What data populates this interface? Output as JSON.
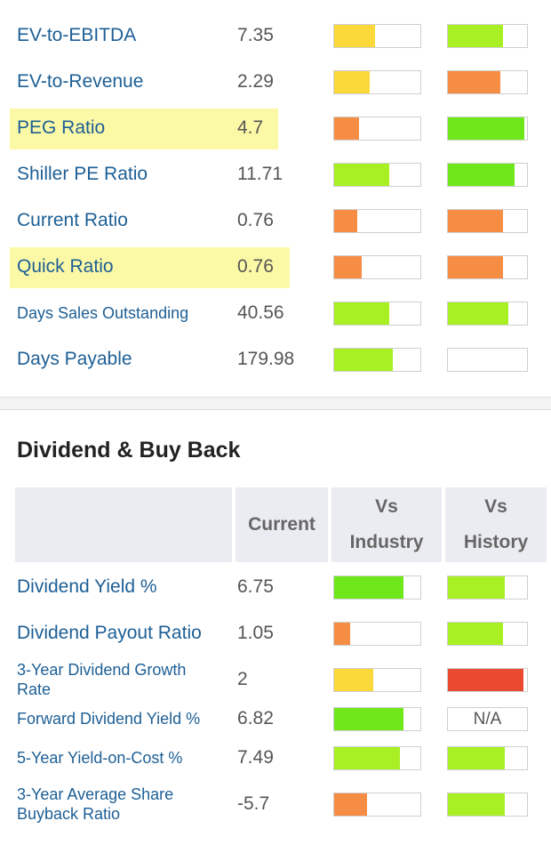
{
  "top_rows": [
    {
      "label": "EV-to-EBITDA",
      "value": "7.35",
      "highlight": false,
      "small": false,
      "industry": {
        "fill": 0.47,
        "color": "#fcd93a"
      },
      "history": {
        "fill": 0.7,
        "color": "#a8f024"
      }
    },
    {
      "label": "EV-to-Revenue",
      "value": "2.29",
      "highlight": false,
      "small": false,
      "industry": {
        "fill": 0.41,
        "color": "#fcd93a"
      },
      "history": {
        "fill": 0.66,
        "color": "#f68d45"
      }
    },
    {
      "label": "PEG Ratio",
      "value": "4.7",
      "highlight": true,
      "small": false,
      "industry": {
        "fill": 0.29,
        "color": "#f68d45"
      },
      "history": {
        "fill": 0.97,
        "color": "#6ee81a"
      }
    },
    {
      "label": "Shiller PE Ratio",
      "value": "11.71",
      "highlight": false,
      "small": false,
      "industry": {
        "fill": 0.64,
        "color": "#a8f024"
      },
      "history": {
        "fill": 0.84,
        "color": "#6ee81a"
      }
    },
    {
      "label": "Current Ratio",
      "value": "0.76",
      "highlight": false,
      "small": false,
      "industry": {
        "fill": 0.27,
        "color": "#f68d45"
      },
      "history": {
        "fill": 0.7,
        "color": "#f68d45"
      }
    },
    {
      "label": "Quick Ratio",
      "value": "0.76",
      "highlight": true,
      "small": false,
      "industry": {
        "fill": 0.32,
        "color": "#f68d45"
      },
      "history": {
        "fill": 0.7,
        "color": "#f68d45"
      }
    },
    {
      "label": "Days Sales Outstanding",
      "value": "40.56",
      "highlight": false,
      "small": true,
      "industry": {
        "fill": 0.64,
        "color": "#a8f024"
      },
      "history": {
        "fill": 0.76,
        "color": "#a8f024"
      }
    },
    {
      "label": "Days Payable",
      "value": "179.98",
      "highlight": false,
      "small": false,
      "industry": {
        "fill": 0.68,
        "color": "#a8f024"
      },
      "history": {
        "fill": 0.0,
        "color": "#a8f024"
      }
    }
  ],
  "section": {
    "title": "Dividend & Buy Back",
    "headers": {
      "current": "Current",
      "industry_1": "Vs",
      "industry_2": "Industry",
      "history_1": "Vs",
      "history_2": "History"
    }
  },
  "bottom_rows": [
    {
      "label_1": "Dividend Yield %",
      "label_2": "",
      "value": "6.75",
      "small": false,
      "industry": {
        "fill": 0.8,
        "color": "#6ee81a"
      },
      "history": {
        "fill": 0.72,
        "color": "#a8f024"
      }
    },
    {
      "label_1": "Dividend Payout Ratio",
      "label_2": "",
      "value": "1.05",
      "small": false,
      "industry": {
        "fill": 0.19,
        "color": "#f68d45"
      },
      "history": {
        "fill": 0.7,
        "color": "#a8f024"
      }
    },
    {
      "label_1": "3-Year Dividend Growth",
      "label_2": "Rate",
      "value": "2",
      "small": true,
      "industry": {
        "fill": 0.45,
        "color": "#fcd93a"
      },
      "history": {
        "fill": 0.96,
        "color": "#ea4a30"
      }
    },
    {
      "label_1": "Forward Dividend Yield %",
      "label_2": "",
      "value": "6.82",
      "small": true,
      "industry": {
        "fill": 0.8,
        "color": "#6ee81a"
      },
      "history": {
        "fill": 0.0,
        "color": "#a8f024",
        "text": "N/A"
      }
    },
    {
      "label_1": "5-Year Yield-on-Cost %",
      "label_2": "",
      "value": "7.49",
      "small": true,
      "industry": {
        "fill": 0.76,
        "color": "#a8f024"
      },
      "history": {
        "fill": 0.72,
        "color": "#a8f024"
      }
    },
    {
      "label_1": "3-Year Average Share",
      "label_2": "Buyback Ratio",
      "value": "-5.7",
      "small": true,
      "industry": {
        "fill": 0.38,
        "color": "#f68d45"
      },
      "history": {
        "fill": 0.72,
        "color": "#a8f024"
      }
    }
  ]
}
